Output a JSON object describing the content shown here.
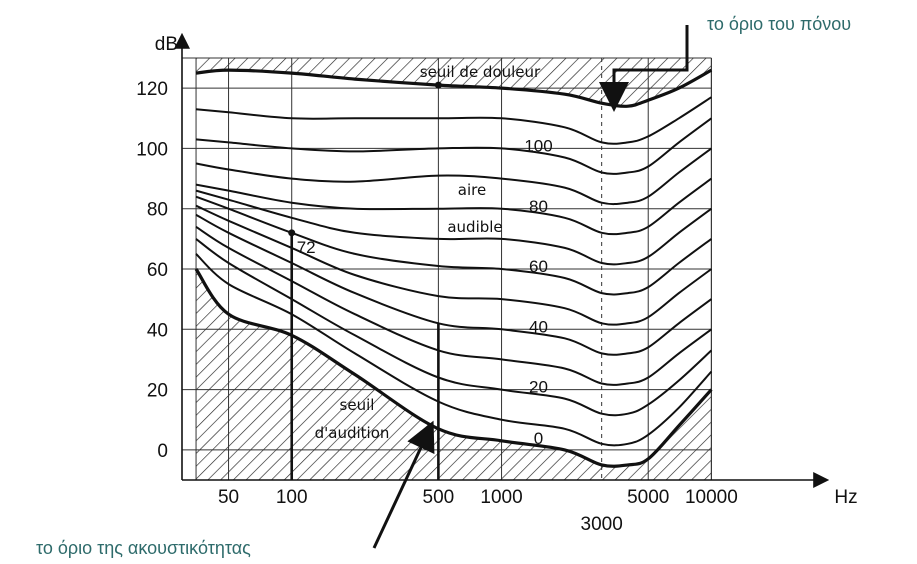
{
  "chart_data": {
    "type": "line",
    "title": "",
    "xlabel": "Hz",
    "ylabel": "dB",
    "x_scale": "log",
    "xlim": [
      30,
      12000
    ],
    "ylim": [
      -10,
      130
    ],
    "x_ticks": [
      {
        "value": 50,
        "label": "50"
      },
      {
        "value": 100,
        "label": "100"
      },
      {
        "value": 500,
        "label": "500"
      },
      {
        "value": 1000,
        "label": "1000"
      },
      {
        "value": 3000,
        "label": "3000"
      },
      {
        "value": 5000,
        "label": "5000"
      },
      {
        "value": 10000,
        "label": "10000"
      }
    ],
    "y_ticks": [
      0,
      20,
      40,
      60,
      80,
      100,
      120
    ],
    "grid": true,
    "point_annotation": {
      "x": 100,
      "y": 72,
      "label": "72"
    },
    "regions": {
      "pain": "seuil de douleur",
      "audible_1": "aire",
      "audible_2": "audible",
      "hearing_1": "seuil",
      "hearing_2": "d'audition"
    },
    "series": [
      {
        "label": "0",
        "x": [
          35,
          50,
          100,
          200,
          500,
          1000,
          2000,
          3000,
          4000,
          5000,
          7000,
          10000
        ],
        "y": [
          60,
          45,
          38,
          25,
          7,
          3,
          0,
          -5,
          -5,
          -3,
          8,
          20
        ]
      },
      {
        "label": "",
        "x": [
          35,
          50,
          100,
          200,
          500,
          1000,
          2000,
          3000,
          4000,
          5000,
          7000,
          10000
        ],
        "y": [
          65,
          55,
          45,
          32,
          16,
          10,
          7,
          2,
          2,
          5,
          14,
          26
        ]
      },
      {
        "label": "20",
        "x": [
          35,
          50,
          100,
          200,
          500,
          1000,
          2000,
          3000,
          4000,
          5000,
          7000,
          10000
        ],
        "y": [
          70,
          62,
          50,
          38,
          24,
          20,
          17,
          12,
          12,
          15,
          23,
          33
        ]
      },
      {
        "label": "",
        "x": [
          35,
          50,
          100,
          200,
          500,
          1000,
          2000,
          3000,
          4000,
          5000,
          7000,
          10000
        ],
        "y": [
          74,
          67,
          56,
          45,
          33,
          30,
          27,
          22,
          22,
          24,
          32,
          40
        ]
      },
      {
        "label": "40",
        "x": [
          35,
          50,
          100,
          200,
          500,
          1000,
          2000,
          3000,
          4000,
          5000,
          7000,
          10000
        ],
        "y": [
          78,
          72,
          62,
          52,
          42,
          40,
          37,
          32,
          32,
          34,
          42,
          50
        ]
      },
      {
        "label": "",
        "x": [
          35,
          50,
          100,
          200,
          500,
          1000,
          2000,
          3000,
          4000,
          5000,
          7000,
          10000
        ],
        "y": [
          81,
          76,
          67,
          58,
          51,
          50,
          47,
          42,
          42,
          44,
          52,
          60
        ]
      },
      {
        "label": "60",
        "x": [
          35,
          50,
          100,
          200,
          500,
          1000,
          2000,
          3000,
          4000,
          5000,
          7000,
          10000
        ],
        "y": [
          84,
          80,
          72,
          65,
          61,
          60,
          57,
          52,
          52,
          54,
          62,
          70
        ]
      },
      {
        "label": "",
        "x": [
          35,
          50,
          100,
          200,
          500,
          1000,
          2000,
          3000,
          4000,
          5000,
          7000,
          10000
        ],
        "y": [
          86,
          83,
          77,
          72,
          70,
          70,
          67,
          62,
          62,
          64,
          72,
          80
        ]
      },
      {
        "label": "80",
        "x": [
          35,
          50,
          100,
          200,
          500,
          1000,
          2000,
          3000,
          4000,
          5000,
          7000,
          10000
        ],
        "y": [
          88,
          86,
          82,
          80,
          80,
          80,
          77,
          72,
          72,
          74,
          82,
          90
        ]
      },
      {
        "label": "",
        "x": [
          35,
          50,
          100,
          200,
          500,
          1000,
          2000,
          3000,
          4000,
          5000,
          7000,
          10000
        ],
        "y": [
          95,
          93,
          90,
          89,
          91,
          90,
          87,
          82,
          82,
          84,
          92,
          100
        ]
      },
      {
        "label": "100",
        "x": [
          35,
          50,
          100,
          200,
          500,
          1000,
          2000,
          3000,
          4000,
          5000,
          7000,
          10000
        ],
        "y": [
          103,
          102,
          100,
          99,
          100,
          100,
          97,
          92,
          92,
          94,
          102,
          110
        ]
      },
      {
        "label": "",
        "x": [
          35,
          50,
          100,
          200,
          500,
          1000,
          2000,
          3000,
          4000,
          5000,
          7000,
          10000
        ],
        "y": [
          113,
          112,
          110,
          110,
          110,
          110,
          107,
          102,
          102,
          104,
          110,
          117
        ]
      },
      {
        "label": "seuil de douleur",
        "x": [
          35,
          50,
          100,
          200,
          500,
          1000,
          2000,
          3000,
          4000,
          5000,
          7000,
          10000
        ],
        "y": [
          125,
          126,
          125,
          123,
          121,
          120,
          118,
          115,
          114,
          116,
          120,
          126
        ]
      }
    ]
  },
  "annotations": {
    "pain_threshold": "το όριο του πόνου",
    "hearing_threshold": "το  όριο της ακουστικότητας"
  }
}
